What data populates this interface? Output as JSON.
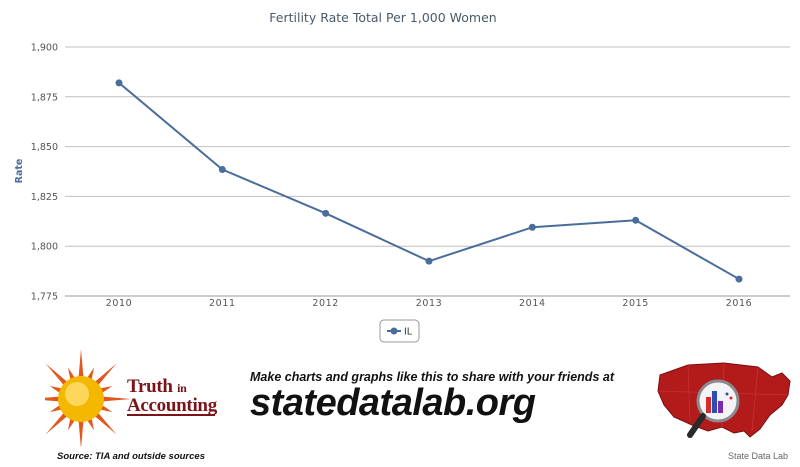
{
  "chart_data": {
    "type": "line",
    "title": "Fertility Rate Total Per 1,000 Women",
    "xlabel": "",
    "ylabel": "Rate",
    "categories": [
      "2010",
      "2011",
      "2012",
      "2013",
      "2014",
      "2015",
      "2016"
    ],
    "series": [
      {
        "name": "IL",
        "values": [
          1882,
          1838.5,
          1816.5,
          1792.5,
          1809.5,
          1813,
          1783.5
        ],
        "color": "#4a6d9a"
      }
    ],
    "yticks": [
      "1,900",
      "1,875",
      "1,850",
      "1,825",
      "1,800",
      "1,775"
    ],
    "ylim": [
      1775,
      1900
    ],
    "grid": true,
    "legend": "bottom-center"
  },
  "footer": {
    "tia_logo_word1": "Truth",
    "tia_logo_word2": "in",
    "tia_logo_word3": "Accounting",
    "source_text": "Source: TIA and outside sources",
    "promo_text": "Make charts and graphs like this to share with your friends at",
    "site_text": "statedatalab.org",
    "brand_text": "State Data Lab"
  },
  "colors": {
    "series": "#4a6d9a",
    "grid": "#c0c0c0",
    "sun": "#f5b800",
    "rays": "#e2571e",
    "map": "#b31b1b",
    "tia_text": "#7a1418"
  },
  "icons": [
    "sun-logo-icon",
    "us-map-logo-icon",
    "magnifier-icon"
  ]
}
